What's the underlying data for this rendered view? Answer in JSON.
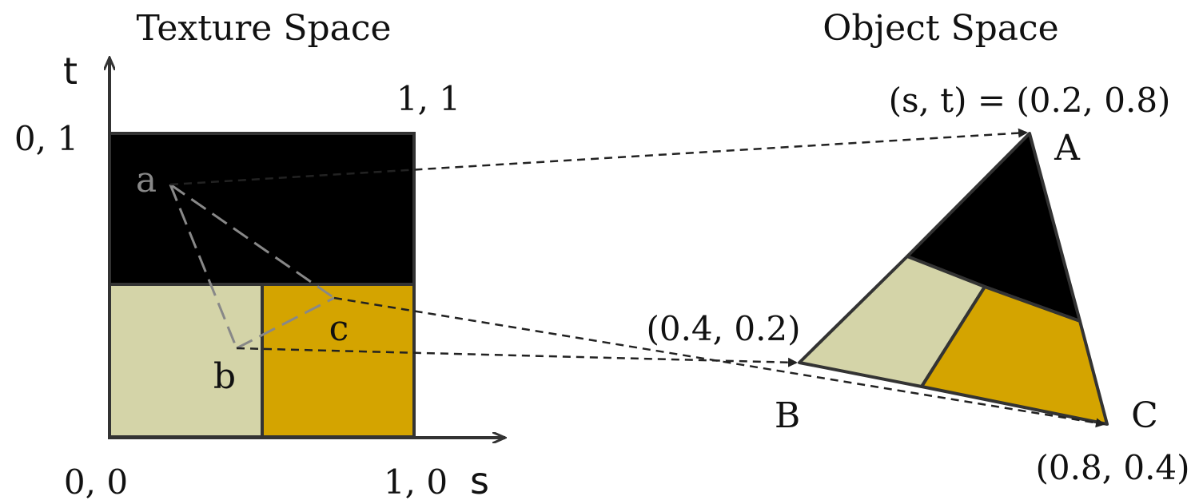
{
  "texture_space": {
    "title": "Texture Space",
    "axis_t": "t",
    "axis_s": "s",
    "corner_00": "0, 0",
    "corner_01": "0, 1",
    "corner_11": "1, 1",
    "corner_10": "1, 0",
    "points": {
      "a": "a",
      "b": "b",
      "c": "c"
    }
  },
  "object_space": {
    "title": "Object Space",
    "vertices": {
      "A": "A",
      "B": "B",
      "C": "C"
    },
    "coords": {
      "A": "(s, t) = (0.2, 0.8)",
      "B": "(0.4, 0.2)",
      "C": "(0.8, 0.4)"
    }
  },
  "colors": {
    "black_region": "#000000",
    "beige_region": "#d4d4a8",
    "gold_region": "#d4a400",
    "outline": "#333333",
    "dashed_gray": "#888888"
  }
}
